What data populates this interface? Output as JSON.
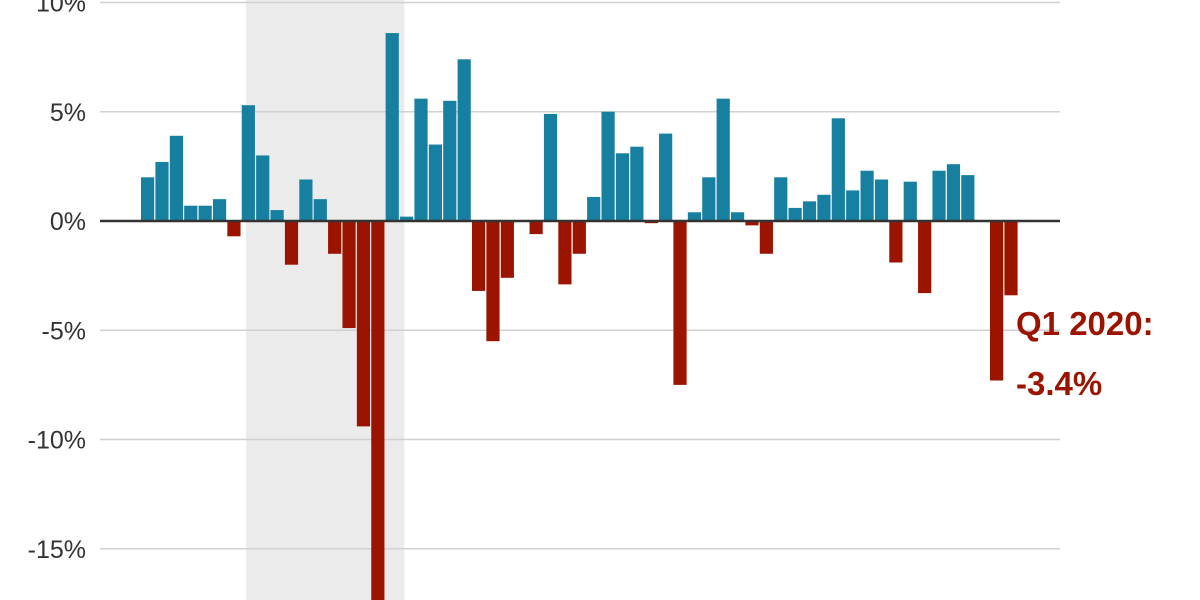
{
  "chart_data": {
    "type": "bar",
    "title": "",
    "xlabel": "",
    "ylabel": "",
    "ylim": [
      -17.4,
      10.1
    ],
    "yticks": [
      10,
      5,
      0,
      -5,
      -10,
      -15
    ],
    "ytick_labels": [
      "10%",
      "5%",
      "0%",
      "-5%",
      "-10%",
      "-15%"
    ],
    "grid": true,
    "shaded_region": {
      "from_index": 7.3,
      "to_index": 18.3
    },
    "values": [
      2.0,
      2.7,
      3.9,
      0.7,
      0.7,
      1.0,
      -0.7,
      5.3,
      3.0,
      0.5,
      -2.0,
      1.9,
      1.0,
      -1.5,
      -4.9,
      -9.4,
      -18.0,
      8.6,
      0.2,
      5.6,
      3.5,
      5.5,
      7.4,
      -3.2,
      -5.5,
      -2.6,
      0.0,
      -0.6,
      4.9,
      -2.9,
      -1.5,
      1.1,
      5.0,
      3.1,
      3.4,
      -0.1,
      4.0,
      -7.5,
      0.4,
      2.0,
      5.6,
      0.4,
      -0.2,
      -1.5,
      2.0,
      0.6,
      0.9,
      1.2,
      4.7,
      1.4,
      2.3,
      1.9,
      -1.9,
      1.8,
      -3.3,
      2.3,
      2.6,
      2.1,
      0.0,
      -7.3,
      -3.4
    ],
    "colors": {
      "positive": "#1780a1",
      "negative": "#9b1400",
      "shade": "#ebebeb",
      "grid": "#d0d0d0",
      "zero": "#333333"
    },
    "annotation": {
      "line1": "Q1 2020:",
      "line2": "-3.4%"
    }
  }
}
